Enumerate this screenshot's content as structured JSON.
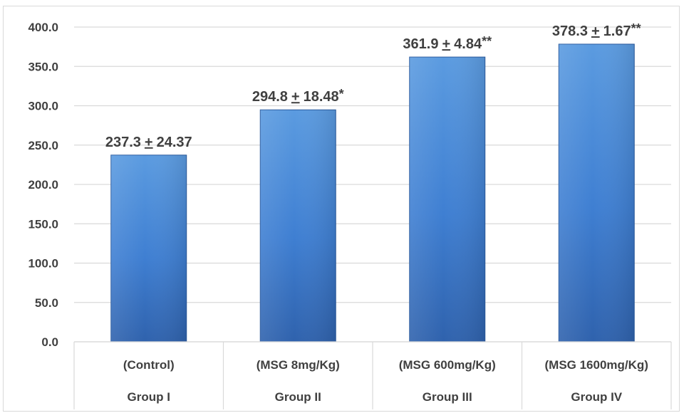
{
  "chart_data": {
    "type": "bar",
    "title": "",
    "xlabel": "",
    "ylabel": "",
    "ylim": [
      0,
      400
    ],
    "yticks": [
      "0.0",
      "50.0",
      "100.0",
      "150.0",
      "200.0",
      "250.0",
      "300.0",
      "350.0",
      "400.0"
    ],
    "grid": true,
    "categories": [
      {
        "group": "Group I",
        "sub": "(Control)"
      },
      {
        "group": "Group II",
        "sub": "(MSG 8mg/Kg)"
      },
      {
        "group": "Group III",
        "sub": "(MSG 600mg/Kg)"
      },
      {
        "group": "Group IV",
        "sub": "(MSG 1600mg/Kg)"
      }
    ],
    "values": [
      237.3,
      294.8,
      361.9,
      378.3
    ],
    "data_labels": [
      {
        "mean": "237.3",
        "pm": "+",
        "sd": "24.37",
        "sig": ""
      },
      {
        "mean": "294.8",
        "pm": "+",
        "sd": "18.48",
        "sig": "*"
      },
      {
        "mean": "361.9",
        "pm": "+",
        "sd": "4.84",
        "sig": "**"
      },
      {
        "mean": "378.3",
        "pm": "+",
        "sd": "1.67",
        "sig": "**"
      }
    ],
    "colors": {
      "bar_top": "#5b9be0",
      "bar_mid": "#3f7fd2",
      "bar_bottom": "#2f62ad",
      "bar_edge": "#2a5a9e",
      "grid": "#d9d9d9",
      "text": "#404040"
    }
  }
}
